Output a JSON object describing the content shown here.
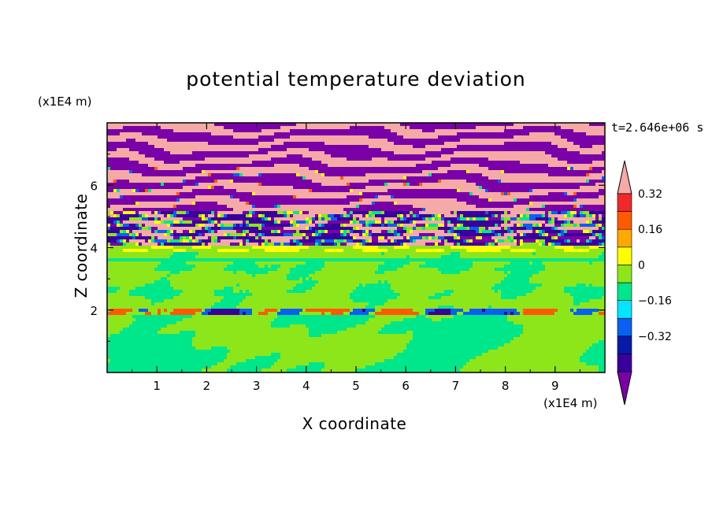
{
  "chart_data": {
    "type": "heatmap",
    "title": "potential temperature deviation",
    "xlabel": "X coordinate",
    "ylabel": "Z coordinate",
    "x_unit": "(x1E4 m)",
    "y_unit": "(x1E4 m)",
    "time_label": "t=2.646e+06 s",
    "xlim": [
      0,
      10
    ],
    "ylim": [
      0,
      8
    ],
    "x_ticks": [
      "1",
      "2",
      "3",
      "4",
      "5",
      "6",
      "7",
      "8",
      "9"
    ],
    "y_ticks": [
      "2",
      "4",
      "6"
    ],
    "colorbar": {
      "levels": [
        -0.48,
        -0.4,
        -0.32,
        -0.24,
        -0.16,
        -0.08,
        0,
        0.08,
        0.16,
        0.24,
        0.32,
        0.4
      ],
      "tick_labels": [
        "0.32",
        "0.16",
        "0",
        "−0.16",
        "−0.32"
      ],
      "tick_values": [
        0.32,
        0.16,
        0,
        -0.16,
        -0.32
      ],
      "colors": [
        "#7a00a8",
        "#3a009e",
        "#0a1aa8",
        "#0a60f0",
        "#00e6ff",
        "#00e68a",
        "#8ce61a",
        "#ffff00",
        "#ffa800",
        "#ff5a00",
        "#f02828",
        "#f5aaa8"
      ]
    },
    "bands": [
      {
        "z_range": [
          0,
          2.0
        ],
        "dominant": "0 to 0.08 and -0.08 to 0",
        "description": "mix of green and spring green, near-zero"
      },
      {
        "z_range": [
          2.0,
          3.8
        ],
        "dominant": "0 to 0.08",
        "description": "mostly yellow-green with green patches"
      },
      {
        "z_range": [
          3.8,
          5.2
        ],
        "dominant": "mixed",
        "description": "turbulent transition layer with all colors"
      },
      {
        "z_range": [
          5.2,
          8.0
        ],
        "dominant": "> 0.40 and < -0.40",
        "description": "alternating pink and purple layers"
      }
    ]
  }
}
